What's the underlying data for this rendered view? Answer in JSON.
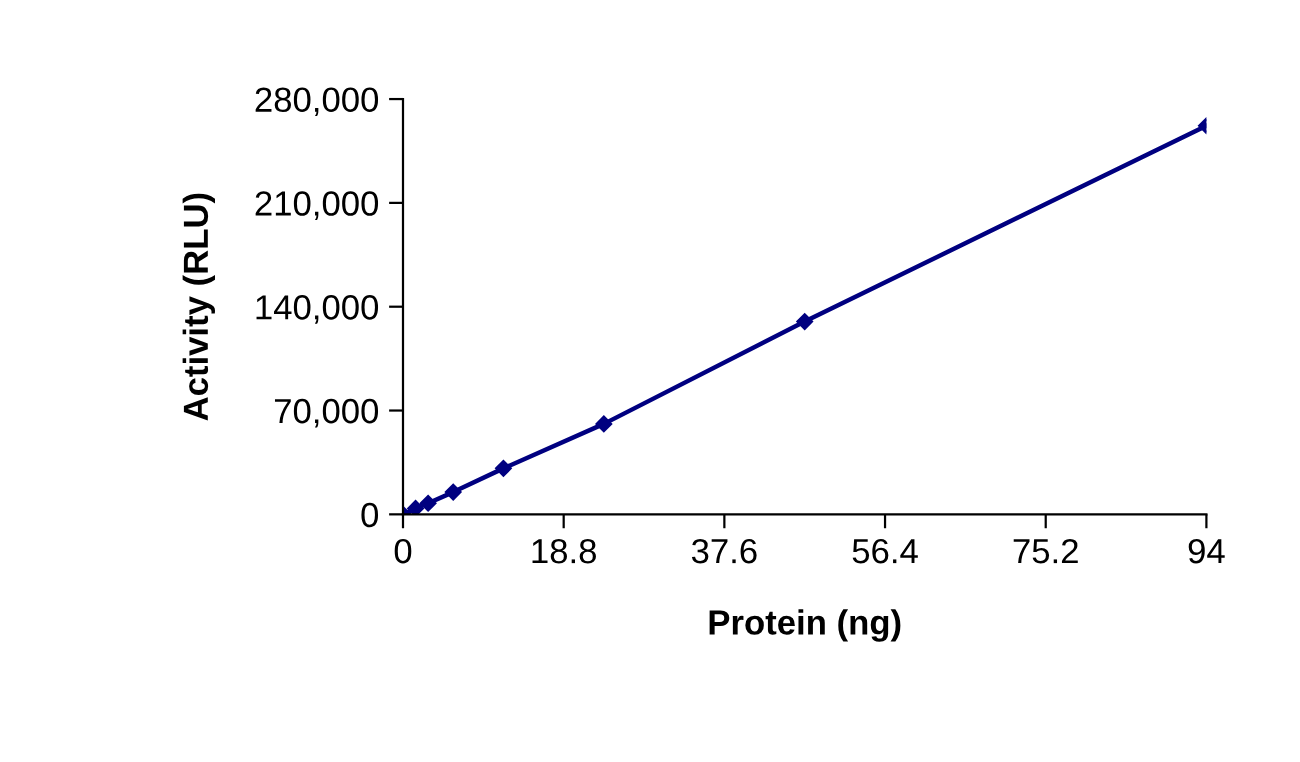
{
  "chart_data": {
    "type": "line",
    "xlabel": "Protein (ng)",
    "ylabel": "Activity (RLU)",
    "x": [
      0,
      1.47,
      2.94,
      5.875,
      11.75,
      23.5,
      47,
      94
    ],
    "series": [
      {
        "color": "#000080",
        "values": [
          0,
          4000,
          7500,
          15000,
          31000,
          61000,
          130000,
          262000
        ]
      }
    ],
    "xlim": [
      0,
      94
    ],
    "xticks": [
      0,
      18.8,
      37.6,
      56.4,
      75.2,
      94
    ],
    "ylim": [
      0,
      280000
    ],
    "yticks": [
      0,
      {
        "value": 70000,
        "label": "70,000"
      },
      {
        "value": 140000,
        "label": "140,000"
      },
      {
        "value": 210000,
        "label": "210,000"
      },
      {
        "value": 280000,
        "label": "280,000"
      }
    ],
    "marker": "diamond",
    "line_style": "solid"
  }
}
